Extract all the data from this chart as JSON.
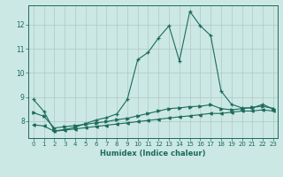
{
  "title": "",
  "xlabel": "Humidex (Indice chaleur)",
  "ylabel": "",
  "background_color": "#cce8e4",
  "grid_color": "#b0c8c4",
  "line_color": "#1a6b5a",
  "xlim_min": -0.5,
  "xlim_max": 23.4,
  "ylim_min": 7.3,
  "ylim_max": 12.8,
  "yticks": [
    8,
    9,
    10,
    11,
    12
  ],
  "xticks": [
    0,
    1,
    2,
    3,
    4,
    5,
    6,
    7,
    8,
    9,
    10,
    11,
    12,
    13,
    14,
    15,
    16,
    17,
    18,
    19,
    20,
    21,
    22,
    23
  ],
  "series1_x": [
    0,
    1,
    2,
    3,
    4,
    5,
    6,
    7,
    8,
    9,
    10,
    11,
    12,
    13,
    14,
    15,
    16,
    17,
    18,
    19,
    20,
    21,
    22,
    23
  ],
  "series1_y": [
    8.9,
    8.4,
    7.6,
    7.65,
    7.75,
    7.9,
    8.05,
    8.15,
    8.3,
    8.9,
    10.55,
    10.85,
    11.45,
    11.95,
    10.5,
    12.55,
    11.95,
    11.55,
    9.25,
    8.7,
    8.55,
    8.55,
    8.7,
    8.5
  ],
  "series2_x": [
    0,
    1,
    2,
    3,
    4,
    5,
    6,
    7,
    8,
    9,
    10,
    11,
    12,
    13,
    14,
    15,
    16,
    17,
    18,
    19,
    20,
    21,
    22,
    23
  ],
  "series2_y": [
    8.35,
    8.2,
    7.72,
    7.77,
    7.82,
    7.87,
    7.93,
    7.98,
    8.06,
    8.12,
    8.22,
    8.32,
    8.42,
    8.52,
    8.55,
    8.6,
    8.62,
    8.68,
    8.52,
    8.47,
    8.52,
    8.57,
    8.62,
    8.52
  ],
  "series3_x": [
    0,
    1,
    2,
    3,
    4,
    5,
    6,
    7,
    8,
    9,
    10,
    11,
    12,
    13,
    14,
    15,
    16,
    17,
    18,
    19,
    20,
    21,
    22,
    23
  ],
  "series3_y": [
    7.85,
    7.8,
    7.58,
    7.63,
    7.68,
    7.73,
    7.78,
    7.83,
    7.88,
    7.93,
    7.98,
    8.03,
    8.08,
    8.13,
    8.18,
    8.22,
    8.27,
    8.32,
    8.32,
    8.37,
    8.42,
    8.42,
    8.47,
    8.42
  ]
}
